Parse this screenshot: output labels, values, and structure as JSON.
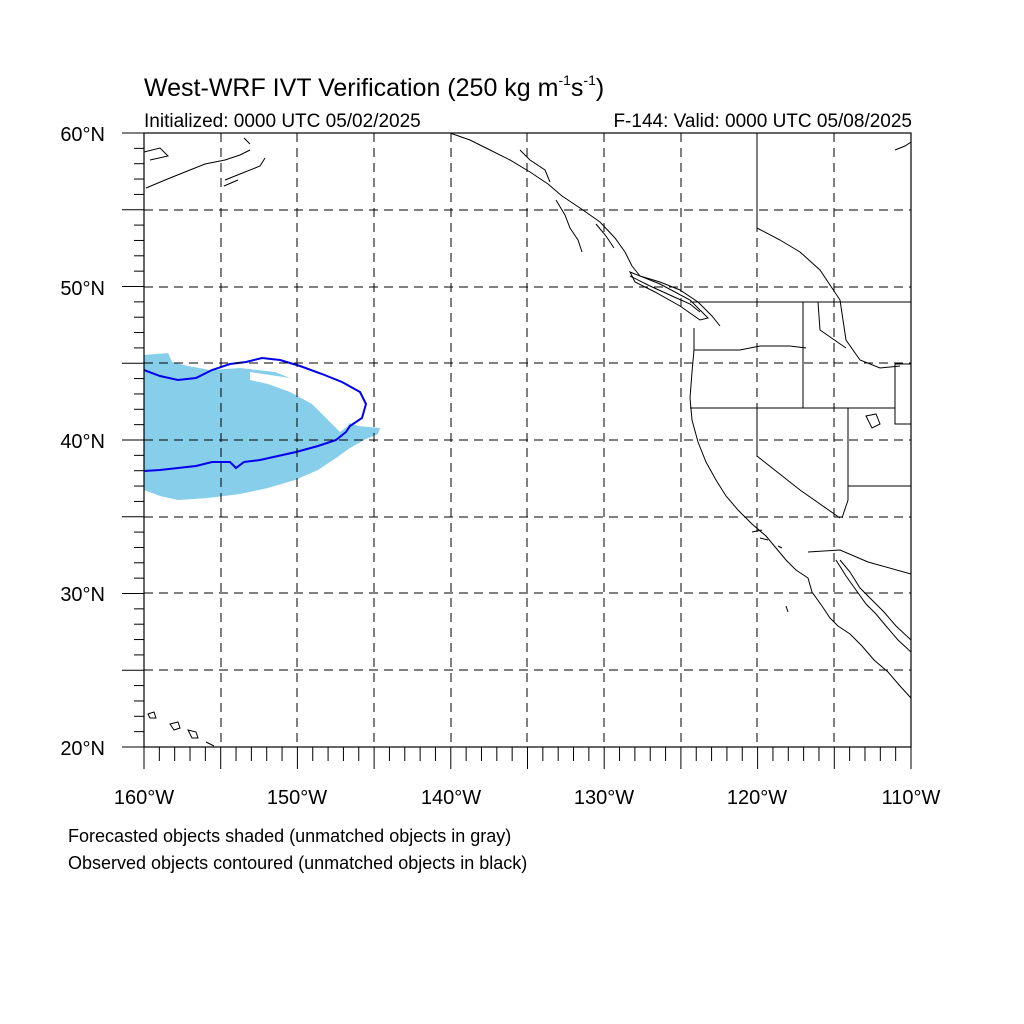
{
  "title": {
    "text": "West-WRF IVT Verification (250 kg m",
    "exp1": "-1",
    "mid": "s",
    "exp2": "-1",
    "close": ")"
  },
  "initialized": "Initialized: 0000 UTC 05/02/2025",
  "valid": "F-144: Valid: 0000 UTC 05/08/2025",
  "footnotes": {
    "line1": "Forecasted objects shaded (unmatched objects in gray)",
    "line2": "Observed objects contoured (unmatched objects in black)"
  },
  "map": {
    "lon_range": [
      -160,
      -110
    ],
    "lat_range": [
      20,
      60
    ],
    "lat_labels": [
      "60°N",
      "50°N",
      "40°N",
      "30°N",
      "20°N"
    ],
    "lon_labels": [
      "160°W",
      "150°W",
      "140°W",
      "130°W",
      "120°W",
      "110°W"
    ],
    "grid_spacing_deg": 5,
    "forecast_fill_color": "#87ceeb",
    "observed_contour_color": "#0000ee"
  }
}
